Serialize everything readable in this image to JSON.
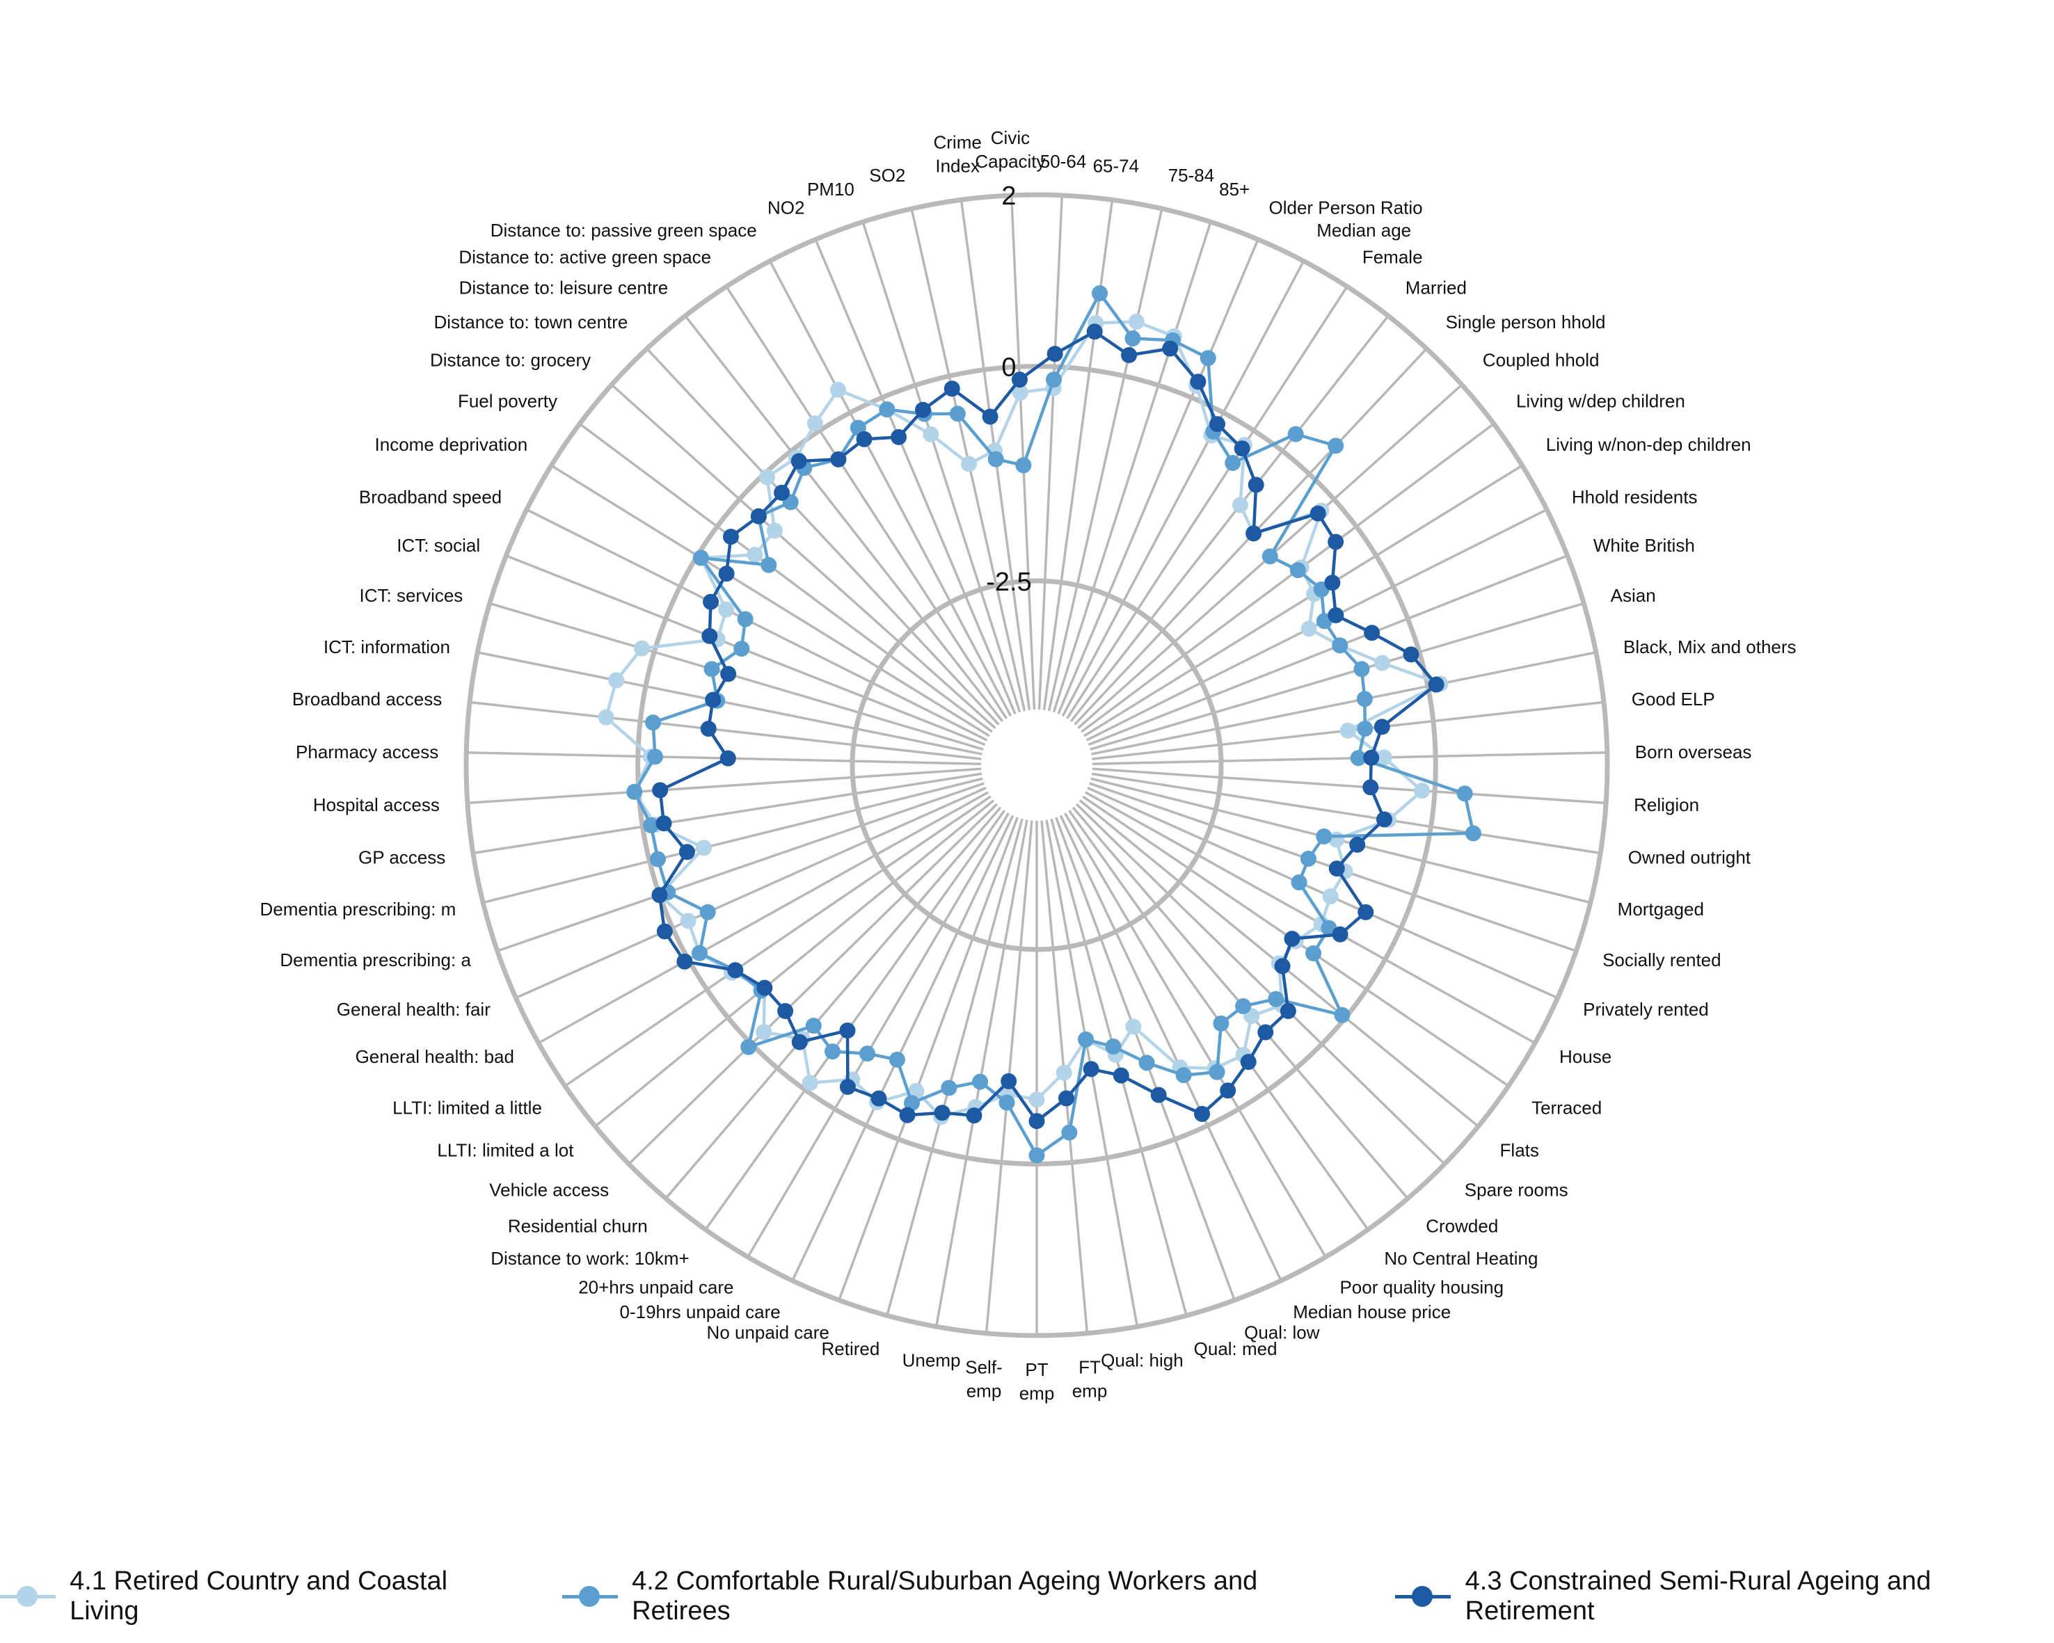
{
  "chart_data": {
    "type": "radar",
    "title": "",
    "grid_labels": [
      {
        "value": 2,
        "text": "2"
      },
      {
        "value": 0,
        "text": "0"
      },
      {
        "value": -2.5,
        "text": "-2.5"
      }
    ],
    "rlim": [
      -4.0,
      2.0
    ],
    "grid": true,
    "legend_position": "bottom",
    "colors": [
      "#b3d3e8",
      "#5a9fcf",
      "#1d5aa3"
    ],
    "axes": [
      "50-64",
      "65-74",
      "75-84",
      "85+",
      "Older Person Ratio",
      "Median age",
      "Female",
      "Married",
      "Single person hhold",
      "Coupled hhold",
      "Living w/dep children",
      "Living w/non-dep children",
      "Hhold residents",
      "White British",
      "Asian",
      "Black, Mix and others",
      "Good ELP",
      "Born overseas",
      "Religion",
      "Owned outright",
      "Mortgaged",
      "Socially rented",
      "Privately rented",
      "House",
      "Terraced",
      "Flats",
      "Spare rooms",
      "Crowded",
      "No Central Heating",
      "Poor quality housing",
      "Median house price",
      "Qual: low",
      "Qual: med",
      "Qual: high",
      "FT emp",
      "PT emp",
      "Self-emp",
      "Unemp",
      "Retired",
      "No unpaid care",
      "0-19hrs unpaid care",
      "20+hrs unpaid care",
      "Distance to work: 10km+",
      "Residential churn",
      "Vehicle access",
      "LLTI: limited a lot",
      "LLTI: limited a little",
      "General health: bad",
      "General health: fair",
      "Dementia prescribing: a",
      "Dementia prescribing: m",
      "GP access",
      "Hospital access",
      "Pharmacy access",
      "Broadband access",
      "ICT: information",
      "ICT: services",
      "ICT: social",
      "Broadband speed",
      "Income deprivation",
      "Fuel poverty",
      "Distance to: grocery",
      "Distance to: town centre",
      "Distance to: leisure centre",
      "Distance to: active green space",
      "Distance to: passive green space",
      "NO2",
      "PM10",
      "SO2",
      "Crime Index",
      "Civic Capacity"
    ],
    "axis_label_lines": [
      [
        "50-64"
      ],
      [
        "65-74"
      ],
      [
        "75-84"
      ],
      [
        "85+"
      ],
      [
        "Older Person Ratio"
      ],
      [
        "Median age"
      ],
      [
        "Female"
      ],
      [
        "Married"
      ],
      [
        "Single person hhold"
      ],
      [
        "Coupled hhold"
      ],
      [
        "Living w/dep children"
      ],
      [
        "Living w/non-dep children"
      ],
      [
        "Hhold residents"
      ],
      [
        "White British"
      ],
      [
        "Asian"
      ],
      [
        "Black, Mix and others"
      ],
      [
        "Good ELP"
      ],
      [
        "Born overseas"
      ],
      [
        "Religion"
      ],
      [
        "Owned outright"
      ],
      [
        "Mortgaged"
      ],
      [
        "Socially rented"
      ],
      [
        "Privately rented"
      ],
      [
        "House"
      ],
      [
        "Terraced"
      ],
      [
        "Flats"
      ],
      [
        "Spare rooms"
      ],
      [
        "Crowded"
      ],
      [
        "No Central Heating"
      ],
      [
        "Poor quality housing"
      ],
      [
        "Median house price"
      ],
      [
        "Qual: low"
      ],
      [
        "Qual: med"
      ],
      [
        "Qual: high"
      ],
      [
        "FT",
        "emp"
      ],
      [
        "PT",
        "emp"
      ],
      [
        "Self-",
        "emp"
      ],
      [
        "Unemp"
      ],
      [
        "Retired"
      ],
      [
        "No unpaid care"
      ],
      [
        "0-19hrs unpaid care"
      ],
      [
        "20+hrs unpaid care"
      ],
      [
        "Distance to work: 10km+"
      ],
      [
        "Residential churn"
      ],
      [
        "Vehicle access"
      ],
      [
        "LLTI: limited a lot"
      ],
      [
        "LLTI: limited a little"
      ],
      [
        "General health: bad"
      ],
      [
        "General health: fair"
      ],
      [
        "Dementia prescribing: a"
      ],
      [
        "Dementia prescribing: m"
      ],
      [
        "GP access"
      ],
      [
        "Hospital access"
      ],
      [
        "Pharmacy access"
      ],
      [
        "Broadband access"
      ],
      [
        "ICT: information"
      ],
      [
        "ICT: services"
      ],
      [
        "ICT: social"
      ],
      [
        "Broadband speed"
      ],
      [
        "Income deprivation"
      ],
      [
        "Fuel poverty"
      ],
      [
        "Distance to: grocery"
      ],
      [
        "Distance to: town centre"
      ],
      [
        "Distance to: leisure centre"
      ],
      [
        "Distance to: active green space"
      ],
      [
        "Distance to: passive green space"
      ],
      [
        "NO2"
      ],
      [
        "PM10"
      ],
      [
        "SO2"
      ],
      [
        "Crime",
        "Index"
      ],
      [
        "Civic",
        "Capacity"
      ]
    ],
    "series": [
      {
        "name": "4.1 Retired Country and Coastal Living",
        "color": "#b3d3e8",
        "values": [
          -0.25,
          0.55,
          0.65,
          0.6,
          0.15,
          -0.3,
          -0.2,
          -0.8,
          -0.95,
          -0.2,
          -0.8,
          -0.85,
          -1.1,
          -0.85,
          -0.45,
          0.15,
          -1.0,
          -0.6,
          -0.15,
          -0.5,
          -1.05,
          -0.85,
          -0.9,
          -0.85,
          -1.0,
          -1.0,
          -0.65,
          -0.8,
          -0.5,
          -0.55,
          -0.75,
          -1.4,
          -1.15,
          -1.4,
          -1.05,
          -0.75,
          -0.8,
          -0.6,
          -0.4,
          -0.6,
          -0.3,
          -0.4,
          -0.1,
          -0.45,
          -0.2,
          -0.55,
          -0.35,
          -0.15,
          -0.2,
          0.0,
          -0.65,
          -0.15,
          0.05,
          -0.15,
          0.4,
          0.35,
          0.15,
          -0.65,
          -0.6,
          -0.05,
          -0.55,
          -0.55,
          -0.05,
          -0.1,
          0.1,
          0.3,
          -0.15,
          -0.6,
          -1.05,
          -0.95,
          -0.3
        ]
      },
      {
        "name": "4.2 Comfortable Rural/Suburban Ageing Workers and Retirees",
        "color": "#5a9fcf",
        "values": [
          -0.15,
          0.9,
          0.45,
          0.55,
          0.5,
          -0.25,
          -0.45,
          0.25,
          0.45,
          -1.0,
          -0.85,
          -0.75,
          -0.9,
          -0.85,
          -0.7,
          -0.75,
          -0.8,
          -0.9,
          0.35,
          0.5,
          -1.2,
          -1.3,
          -1.3,
          -0.75,
          -0.75,
          -0.05,
          -0.75,
          -0.95,
          -0.95,
          -0.5,
          -0.65,
          -0.95,
          -1.25,
          -1.4,
          -0.35,
          -0.1,
          -0.7,
          -0.9,
          -0.75,
          -0.45,
          -0.85,
          -0.75,
          -0.55,
          -0.65,
          0.05,
          -0.5,
          -0.4,
          -0.15,
          -0.45,
          -0.1,
          -0.1,
          -0.1,
          0.05,
          -0.2,
          -0.15,
          -0.85,
          -0.7,
          -0.95,
          -0.85,
          -0.05,
          -0.75,
          -0.3,
          -0.45,
          -0.25,
          -0.4,
          -0.2,
          -0.15,
          -0.35,
          -0.45,
          -1.05,
          -1.15
        ]
      },
      {
        "name": "4.3 Constrained Semi-Rural Ageing and Retirement",
        "color": "#1d5aa3",
        "values": [
          0.15,
          0.45,
          0.25,
          0.45,
          0.2,
          -0.15,
          -0.25,
          -0.5,
          -0.95,
          -0.25,
          -0.3,
          -0.6,
          -0.75,
          -0.45,
          -0.1,
          0.1,
          -0.6,
          -0.75,
          -0.75,
          -0.55,
          -0.8,
          -0.95,
          -0.45,
          -0.6,
          -1.05,
          -0.95,
          -0.55,
          -0.55,
          -0.4,
          -0.25,
          -0.15,
          -0.55,
          -0.9,
          -1.05,
          -0.75,
          -0.5,
          -0.95,
          -0.5,
          -0.45,
          -0.3,
          -0.35,
          -0.3,
          -0.85,
          -0.4,
          -0.55,
          -0.55,
          -0.4,
          0.05,
          0.1,
          0.0,
          -0.45,
          -0.25,
          -0.25,
          -1.05,
          -0.8,
          -0.8,
          -0.9,
          -0.55,
          -0.4,
          -0.4,
          -0.2,
          -0.3,
          -0.3,
          -0.15,
          -0.4,
          -0.35,
          -0.5,
          -0.3,
          -0.15,
          -0.55,
          -0.15
        ]
      }
    ]
  },
  "legend": {
    "items": [
      {
        "label": "4.1 Retired Country and Coastal Living",
        "color": "#b3d3e8"
      },
      {
        "label": "4.2 Comfortable Rural/Suburban Ageing Workers and Retirees",
        "color": "#5a9fcf"
      },
      {
        "label": "4.3 Constrained Semi-Rural Ageing and Retirement",
        "color": "#1d5aa3"
      }
    ]
  }
}
